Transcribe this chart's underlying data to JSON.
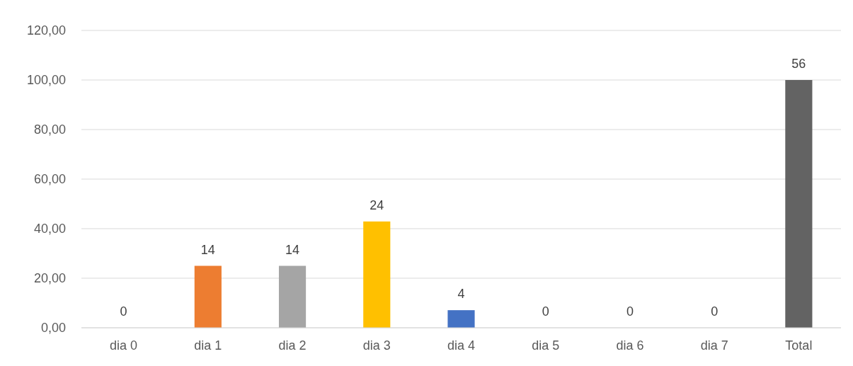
{
  "chart_data": {
    "type": "bar",
    "categories": [
      "dia 0",
      "dia 1",
      "dia 2",
      "dia 3",
      "dia 4",
      "dia 5",
      "dia 6",
      "dia 7",
      "Total"
    ],
    "values": [
      0,
      25,
      25,
      42.9,
      7.1,
      0,
      0,
      0,
      100
    ],
    "colors": [
      "#5b9bd5",
      "#ed7d31",
      "#a5a5a5",
      "#ffc000",
      "#4472c4",
      "#70ad47",
      "#264478",
      "#9e480e",
      "#636363"
    ],
    "ylim": [
      0,
      120
    ],
    "yticks": [
      {
        "value": 0,
        "label": "0,00"
      },
      {
        "value": 20,
        "label": "20,00"
      },
      {
        "value": 40,
        "label": "40,00"
      },
      {
        "value": 60,
        "label": "60,00"
      },
      {
        "value": 80,
        "label": "80,00"
      },
      {
        "value": 100,
        "label": "100,00"
      },
      {
        "value": 120,
        "label": "120,00"
      }
    ],
    "annotations": [
      {
        "text": "0",
        "x": "dia 0",
        "y": 0
      },
      {
        "text": "14",
        "x": "dia 1",
        "y": 25
      },
      {
        "text": "14",
        "x": "dia 2",
        "y": 25
      },
      {
        "text": "24",
        "x": "dia 3",
        "y": 42.9
      },
      {
        "text": "4",
        "x": "dia 4",
        "y": 7.1
      },
      {
        "text": "0",
        "x": "dia 5",
        "y": 0
      },
      {
        "text": "0",
        "x": "dia 6",
        "y": 0
      },
      {
        "text": "0",
        "x": "dia 7",
        "y": 0
      },
      {
        "text": "56",
        "x": "Total",
        "y": 100
      }
    ],
    "grid": "y"
  }
}
